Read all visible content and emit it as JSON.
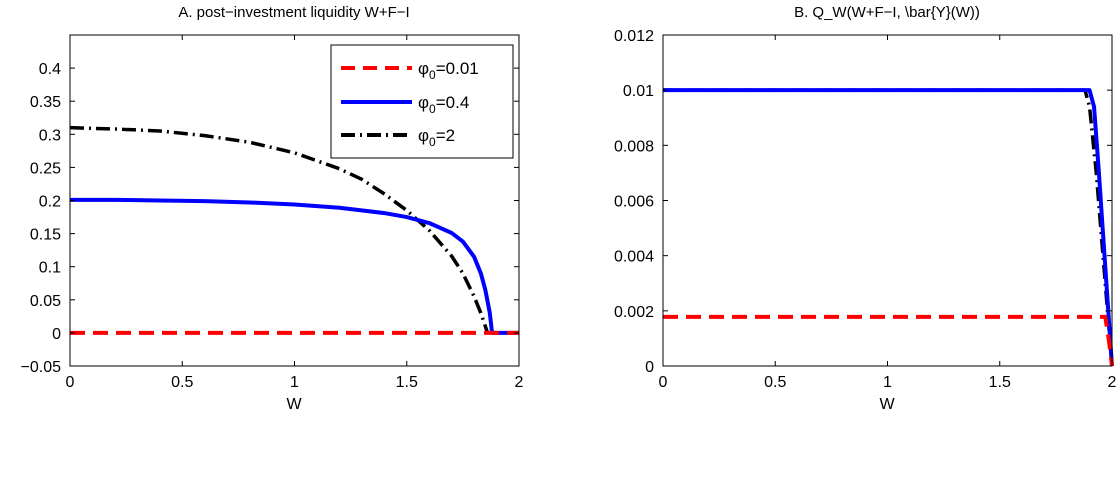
{
  "chart_data": [
    {
      "type": "line",
      "title": "A. post−investment liquidity W+F−I",
      "xlabel": "W",
      "ylabel": "",
      "xlim": [
        0,
        2
      ],
      "ylim": [
        -0.05,
        0.45
      ],
      "xticks": [
        0,
        0.5,
        1,
        1.5,
        2
      ],
      "xtick_labels": [
        "0",
        "0.5",
        "1",
        "1.5",
        "2"
      ],
      "yticks": [
        -0.05,
        0,
        0.05,
        0.1,
        0.15,
        0.2,
        0.25,
        0.3,
        0.35,
        0.4
      ],
      "ytick_labels": [
        "−0.05",
        "0",
        "0.05",
        "0.1",
        "0.15",
        "0.2",
        "0.25",
        "0.3",
        "0.35",
        "0.4"
      ],
      "grid": false,
      "legend": "top-right",
      "series": [
        {
          "name": "φ",
          "subscript": "0",
          "value_label": "=0.01",
          "color": "#ff0000",
          "style": "dashed",
          "x": [
            0,
            0.5,
            1,
            1.5,
            1.9,
            2
          ],
          "y": [
            0,
            0,
            0,
            0,
            0,
            0
          ]
        },
        {
          "name": "φ",
          "subscript": "0",
          "value_label": "=0.4",
          "color": "#0000ff",
          "style": "solid",
          "x": [
            0,
            0.2,
            0.4,
            0.6,
            0.8,
            1.0,
            1.2,
            1.4,
            1.5,
            1.6,
            1.7,
            1.75,
            1.8,
            1.83,
            1.85,
            1.87,
            1.88,
            1.9,
            1.95,
            2
          ],
          "y": [
            0.201,
            0.201,
            0.2,
            0.199,
            0.197,
            0.194,
            0.189,
            0.181,
            0.175,
            0.166,
            0.151,
            0.138,
            0.115,
            0.09,
            0.065,
            0.03,
            0,
            0,
            0,
            0
          ]
        },
        {
          "name": "φ",
          "subscript": "0",
          "value_label": "=2",
          "color": "#000000",
          "style": "dashdot",
          "x": [
            0,
            0.2,
            0.4,
            0.6,
            0.8,
            1.0,
            1.2,
            1.3,
            1.4,
            1.5,
            1.6,
            1.7,
            1.75,
            1.8,
            1.83,
            1.85,
            1.86
          ],
          "y": [
            0.31,
            0.308,
            0.305,
            0.298,
            0.288,
            0.272,
            0.248,
            0.232,
            0.21,
            0.185,
            0.155,
            0.116,
            0.09,
            0.055,
            0.03,
            0.01,
            0
          ]
        }
      ]
    },
    {
      "type": "line",
      "title": "B. Q_W(W+F−I, \\bar{Y}(W))",
      "xlabel": "W",
      "ylabel": "",
      "xlim": [
        0,
        2
      ],
      "ylim": [
        0,
        0.012
      ],
      "xticks": [
        0,
        0.5,
        1,
        1.5,
        2
      ],
      "xtick_labels": [
        "0",
        "0.5",
        "1",
        "1.5",
        "2"
      ],
      "yticks": [
        0,
        0.002,
        0.004,
        0.006,
        0.008,
        0.01,
        0.012
      ],
      "ytick_labels": [
        "0",
        "0.002",
        "0.004",
        "0.006",
        "0.008",
        "0.01",
        "0.012"
      ],
      "grid": false,
      "series": [
        {
          "label": "φ₀=0.01",
          "color": "#ff0000",
          "style": "dashed",
          "x": [
            0,
            1.97,
            1.985,
            2
          ],
          "y": [
            0.00178,
            0.00178,
            0.001,
            0
          ]
        },
        {
          "label": "φ₀=0.4",
          "color": "#0000ff",
          "style": "solid",
          "x": [
            0,
            1.9,
            1.92,
            1.94,
            1.96,
            1.98,
            2
          ],
          "y": [
            0.01,
            0.01,
            0.0094,
            0.0072,
            0.0048,
            0.0024,
            0
          ]
        },
        {
          "label": "φ₀=2",
          "color": "#000000",
          "style": "dashdot",
          "x": [
            0,
            1.88,
            1.9,
            1.93,
            1.96,
            2
          ],
          "y": [
            0.01,
            0.01,
            0.0094,
            0.007,
            0.004,
            0
          ]
        }
      ]
    }
  ]
}
